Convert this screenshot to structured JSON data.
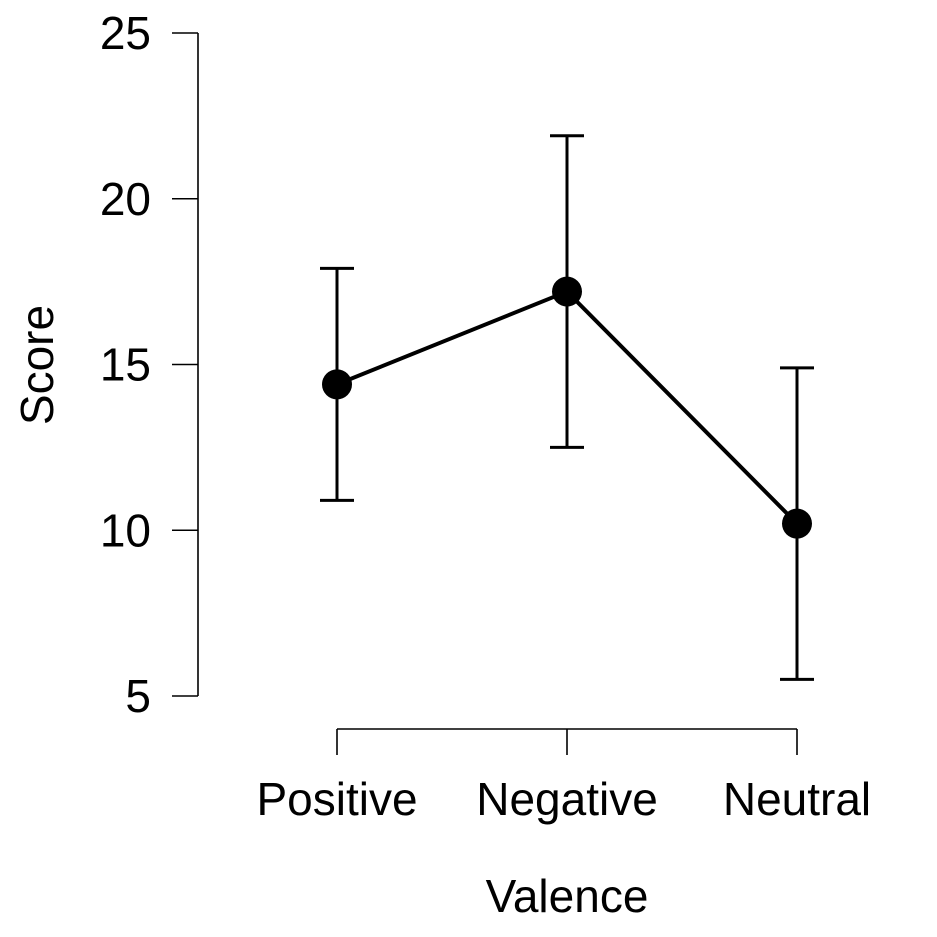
{
  "chart_data": {
    "type": "line",
    "title": "",
    "xlabel": "Valence",
    "ylabel": "Score",
    "categories": [
      "Positive",
      "Negative",
      "Neutral"
    ],
    "series": [
      {
        "values": [
          14.4,
          17.2,
          10.2
        ],
        "error_low": [
          10.9,
          12.5,
          5.5
        ],
        "error_high": [
          17.9,
          21.9,
          14.9
        ]
      }
    ],
    "ylim": [
      5,
      25
    ],
    "yticks": [
      5,
      10,
      15,
      20,
      25
    ],
    "grid": false,
    "colors": {
      "series": "#000000",
      "axes": "#000000"
    }
  }
}
